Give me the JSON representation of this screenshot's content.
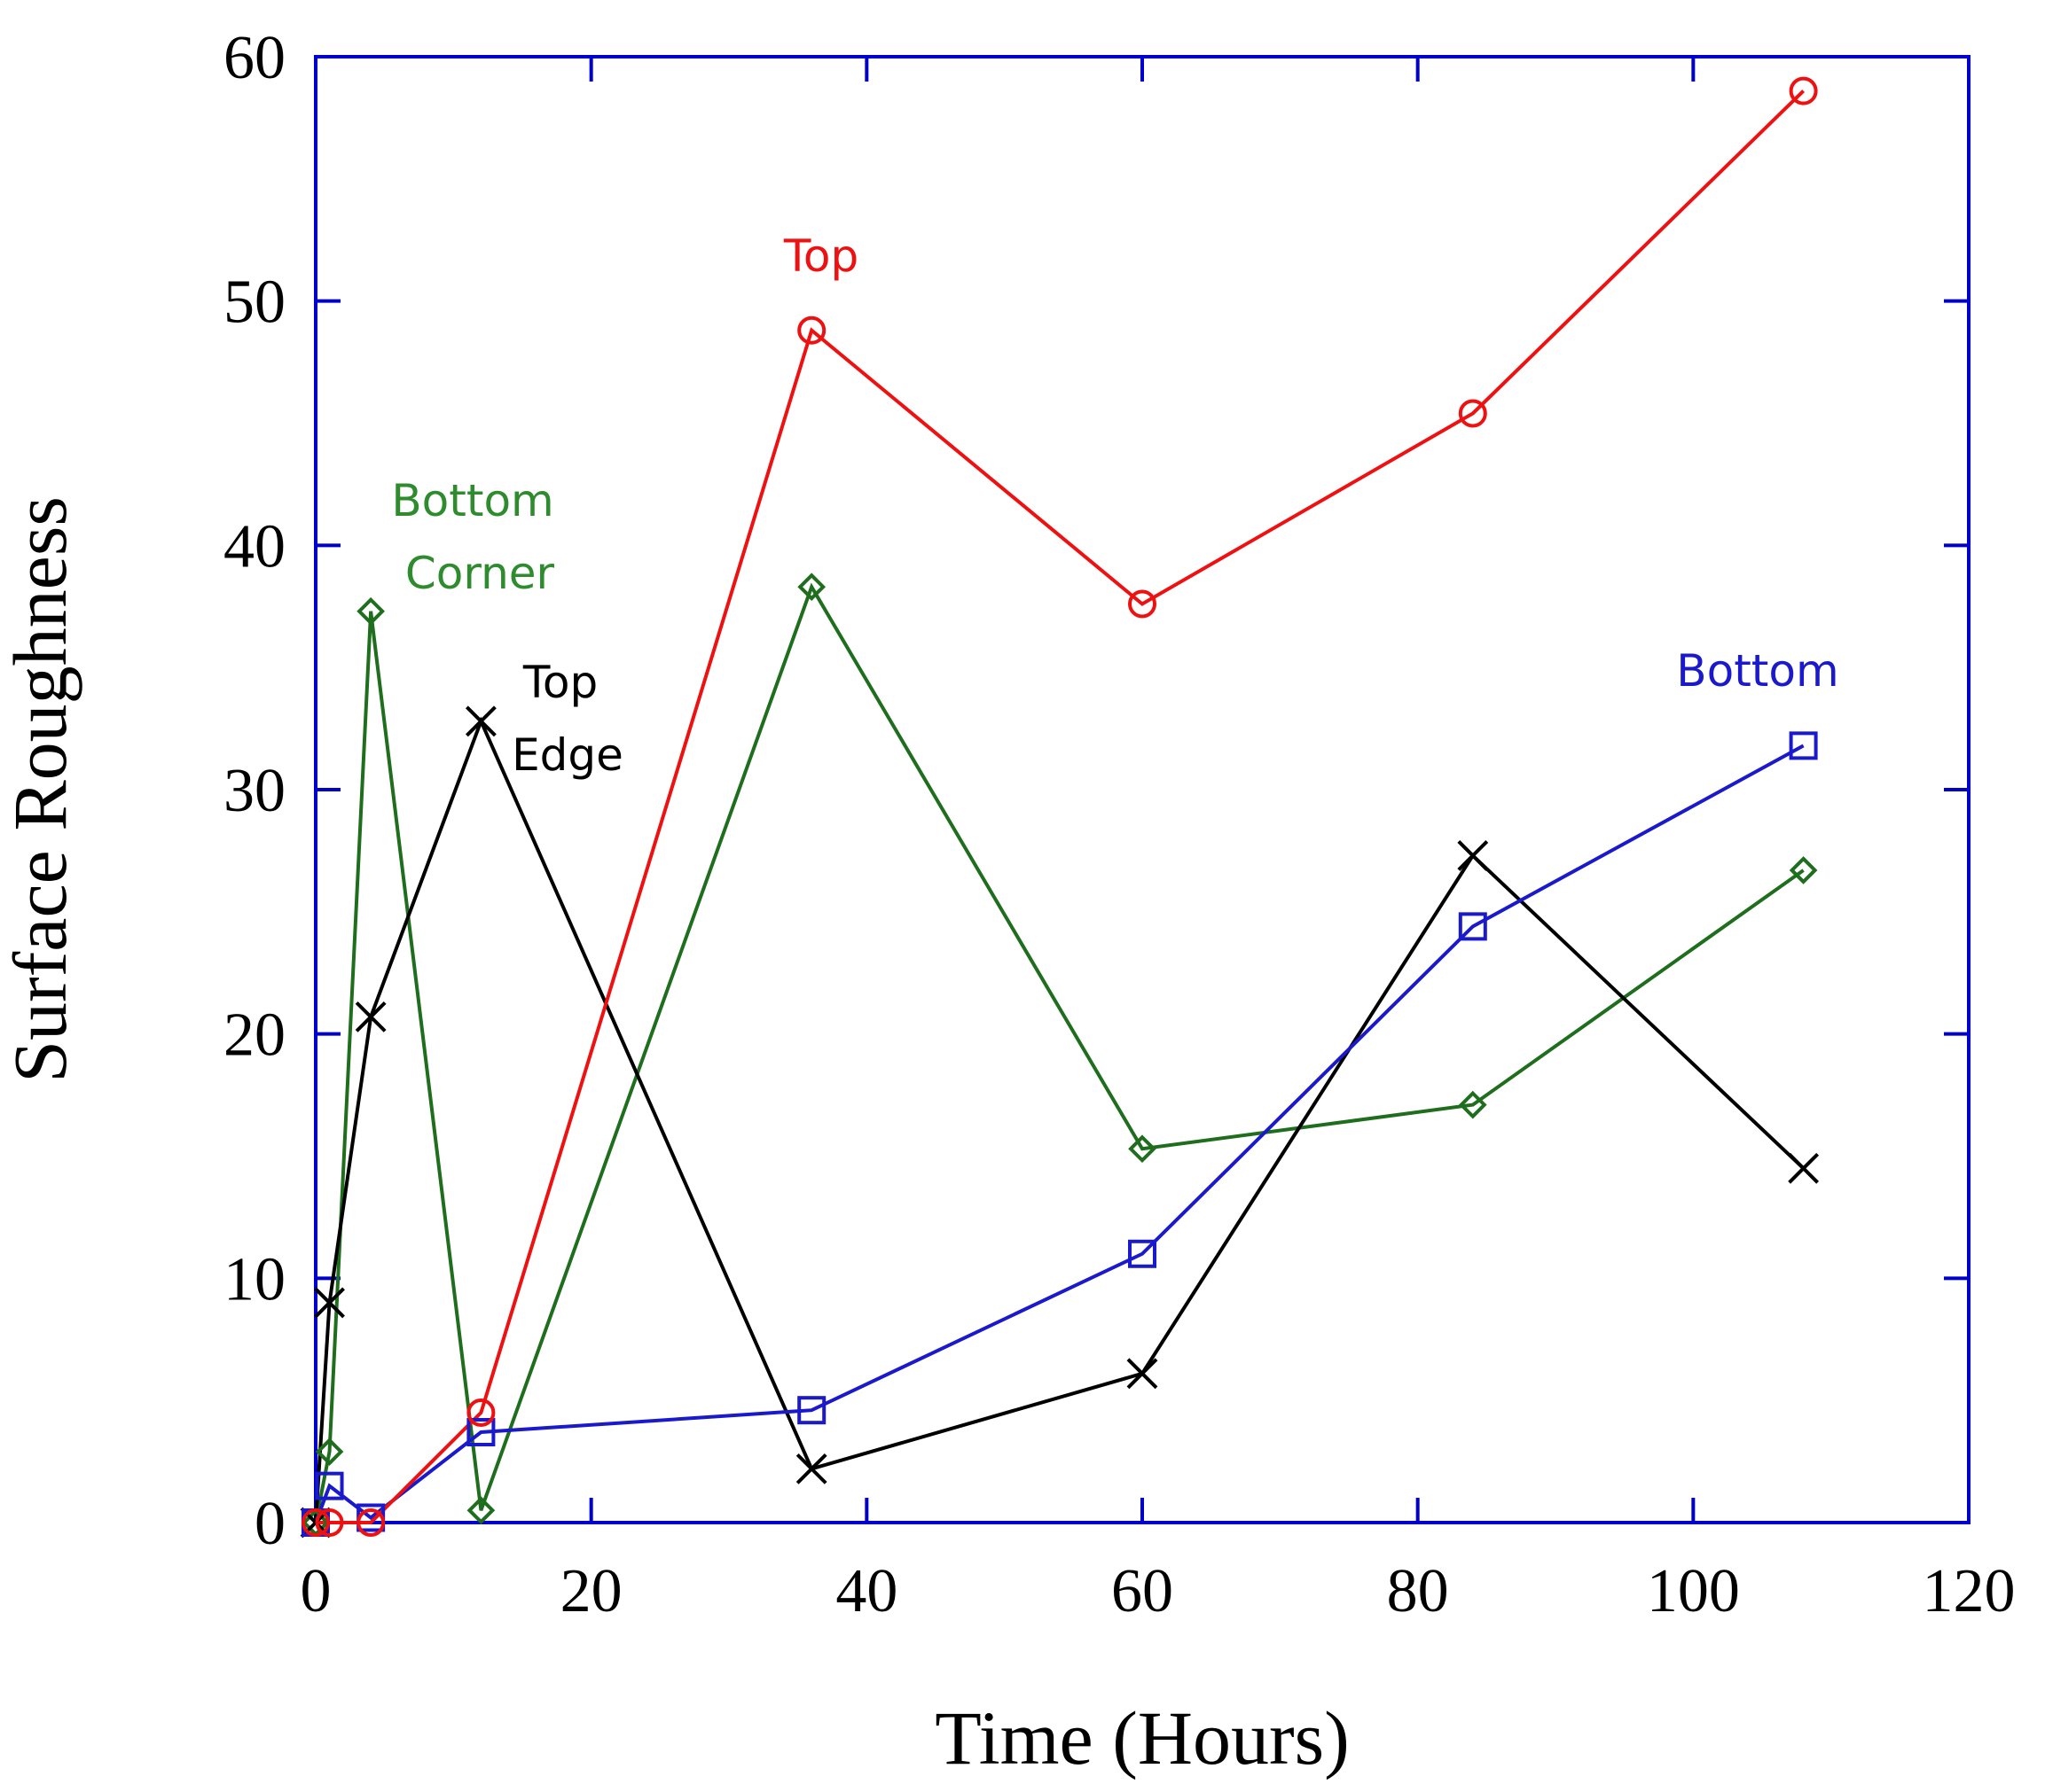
{
  "chart_data": {
    "type": "line",
    "title": "",
    "xlabel": "Time (Hours)",
    "ylabel": "Surface Roughness",
    "xlim": [
      0,
      120
    ],
    "ylim": [
      0,
      60
    ],
    "xticks": [
      0,
      20,
      40,
      60,
      80,
      100,
      120
    ],
    "yticks": [
      0,
      10,
      20,
      30,
      40,
      50,
      60
    ],
    "grid": false,
    "axis_color": "#0000cc",
    "x": [
      0,
      1,
      4,
      12,
      36,
      60,
      84,
      108
    ],
    "series": [
      {
        "name": "Top",
        "color": "#ee1111",
        "marker": "circle",
        "values": [
          0,
          0,
          0,
          4.5,
          48.8,
          37.6,
          45.4,
          58.6
        ]
      },
      {
        "name": "Bottom",
        "color": "#1a1acc",
        "marker": "square",
        "values": [
          0,
          1.5,
          0.2,
          3.7,
          4.6,
          11.0,
          24.4,
          31.8
        ]
      },
      {
        "name": "Bottom Corner",
        "color": "#1e6e1e",
        "marker": "diamond",
        "values": [
          0,
          2.9,
          37.3,
          0.5,
          38.3,
          15.3,
          17.1,
          26.7
        ]
      },
      {
        "name": "Top Edge",
        "color": "#000000",
        "marker": "x",
        "values": [
          0,
          9.0,
          20.7,
          32.8,
          2.2,
          6.1,
          27.3,
          14.5
        ]
      }
    ],
    "annotations": [
      {
        "series": "Top",
        "lines": [
          "Top"
        ]
      },
      {
        "series": "Bottom Corner",
        "lines": [
          "Bottom",
          "Corner"
        ]
      },
      {
        "series": "Top Edge",
        "lines": [
          "Top",
          "Edge"
        ]
      },
      {
        "series": "Bottom",
        "lines": [
          "Bottom"
        ]
      }
    ]
  }
}
